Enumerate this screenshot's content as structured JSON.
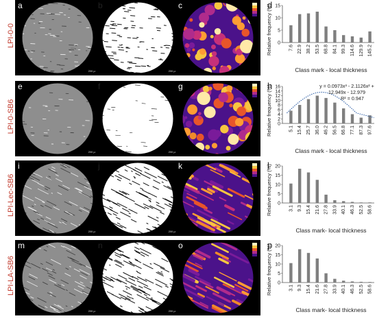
{
  "rows": [
    {
      "sample": "LPI-0-0",
      "letters": [
        "a",
        "b",
        "c",
        "d"
      ],
      "scale_label": "200 µm",
      "chart_data": {
        "type": "bar",
        "ylabel": "Relative frequency (%)",
        "xlabel": "Class mark - local thickness",
        "categories": [
          "7.6",
          "22.9",
          "38.2",
          "53.5",
          "68.8",
          "84.1",
          "99.3",
          "114.6",
          "129.9",
          "145.2"
        ],
        "values": [
          7,
          11.5,
          11.8,
          12.5,
          6.5,
          5,
          3,
          2.5,
          2,
          4.5
        ],
        "ylim": [
          0,
          15
        ],
        "yticks": [
          0,
          5,
          10,
          15
        ]
      }
    },
    {
      "sample": "LPI-0-SB6",
      "letters": [
        "e",
        "f",
        "g",
        "h"
      ],
      "scale_label": "200 µm",
      "chart_data": {
        "type": "bar",
        "ylabel": "Relative frequency (%)",
        "xlabel": "Class mark - local thickness",
        "categories": [
          "5.1",
          "15.4",
          "25.7",
          "36.0",
          "46.2",
          "56.5",
          "66.8",
          "77.1",
          "87.3",
          "97.6"
        ],
        "values": [
          5.5,
          8,
          10.5,
          12,
          11,
          9,
          6.5,
          4,
          2.5,
          3.5
        ],
        "ylim": [
          0,
          16
        ],
        "yticks": [
          0,
          2,
          4,
          6,
          8,
          10,
          12,
          14,
          16
        ],
        "annotation": [
          "y = 0.0973x³ - 2.1126x² +",
          "12.949x - 12.979",
          "R² = 0.947"
        ],
        "trendline": true
      }
    },
    {
      "sample": "LPI-Lec-SB6",
      "letters": [
        "i",
        "j",
        "k",
        "l"
      ],
      "scale_label": "200 µm",
      "chart_data": {
        "type": "bar",
        "ylabel": "Relative frequency (%)",
        "xlabel": "Class mark- local thickness",
        "categories": [
          "3.1",
          "9.3",
          "15.4",
          "21.6",
          "27.8",
          "33.9",
          "40.1",
          "46.3",
          "52.5",
          "58.6"
        ],
        "values": [
          10.5,
          18.5,
          16.5,
          12.5,
          4.5,
          1.5,
          1,
          0.6,
          0.3,
          0.3
        ],
        "ylim": [
          0,
          20
        ],
        "yticks": [
          0,
          5,
          10,
          15,
          20
        ]
      }
    },
    {
      "sample": "LPI-LA-SB6",
      "letters": [
        "m",
        "n",
        "o",
        "p"
      ],
      "scale_label": "200 µm",
      "chart_data": {
        "type": "bar",
        "ylabel": "Relative frequency (%)",
        "xlabel": "Class mark- local thickness",
        "categories": [
          "3.1",
          "9.3",
          "15.4",
          "21.6",
          "27.8",
          "33.9",
          "40.1",
          "46.3",
          "52.5",
          "58.6"
        ],
        "values": [
          10.5,
          18,
          16,
          13,
          5,
          2,
          1,
          0.6,
          0.4,
          0.3
        ],
        "ylim": [
          0,
          20
        ],
        "yticks": [
          0,
          5,
          10,
          15,
          20
        ]
      }
    }
  ]
}
